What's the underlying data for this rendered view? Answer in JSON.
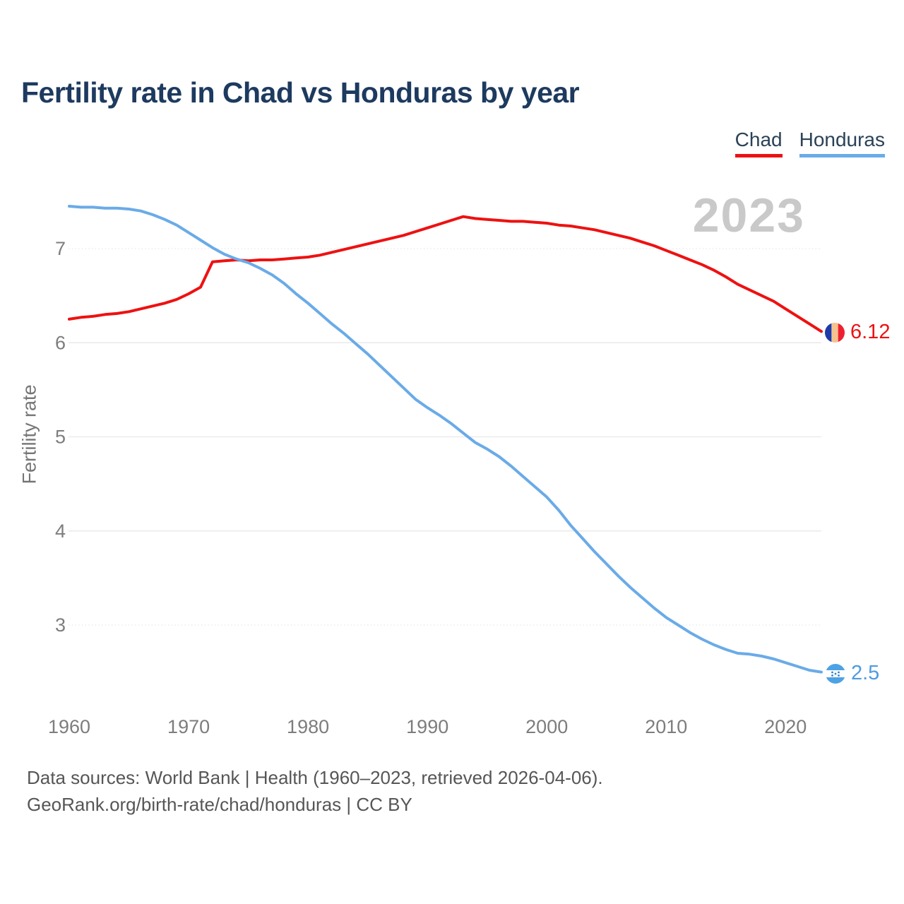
{
  "header": {
    "title": "Fertility rate in Chad vs Honduras by year"
  },
  "legend": [
    {
      "label": "Chad",
      "color": "#ee1111"
    },
    {
      "label": "Honduras",
      "color": "#6aabe8"
    }
  ],
  "watermark": "2023",
  "footer": {
    "line1": "Data sources: World Bank | Health (1960–2023, retrieved 2026-04-06).",
    "line2": "GeoRank.org/birth-rate/chad/honduras | CC BY"
  },
  "colors": {
    "chad_line": "#ee1111",
    "honduras_line": "#6aabe8",
    "honduras_value_text": "#4f9be0",
    "title_text": "#1d3a5f",
    "tick_text": "#7d7d7d",
    "gridline": "#e8e8e8",
    "watermark_text": "#c9c9c9"
  },
  "chart_data": {
    "type": "line",
    "title": "Fertility rate in Chad vs Honduras by year",
    "xlabel": "",
    "ylabel": "Fertility rate",
    "annotation_year": "2023",
    "legend_position": "top-right",
    "grid": true,
    "xticks": [
      1960,
      1970,
      1980,
      1990,
      2000,
      2010,
      2020
    ],
    "yticks": [
      3,
      4,
      5,
      6,
      7
    ],
    "ylim": [
      2.2,
      7.7
    ],
    "xlim": [
      1960,
      2023
    ],
    "x": [
      1960,
      1961,
      1962,
      1963,
      1964,
      1965,
      1966,
      1967,
      1968,
      1969,
      1970,
      1971,
      1972,
      1973,
      1974,
      1975,
      1976,
      1977,
      1978,
      1979,
      1980,
      1981,
      1982,
      1983,
      1984,
      1985,
      1986,
      1987,
      1988,
      1989,
      1990,
      1991,
      1992,
      1993,
      1994,
      1995,
      1996,
      1997,
      1998,
      1999,
      2000,
      2001,
      2002,
      2003,
      2004,
      2005,
      2006,
      2007,
      2008,
      2009,
      2010,
      2011,
      2012,
      2013,
      2014,
      2015,
      2016,
      2017,
      2018,
      2019,
      2020,
      2021,
      2022,
      2023
    ],
    "series": [
      {
        "name": "Chad",
        "color": "#ee1111",
        "end_label": "6.12",
        "final_value": 6.12,
        "values": [
          6.25,
          6.27,
          6.28,
          6.3,
          6.31,
          6.33,
          6.36,
          6.39,
          6.42,
          6.46,
          6.52,
          6.59,
          6.86,
          6.87,
          6.88,
          6.87,
          6.88,
          6.88,
          6.89,
          6.9,
          6.91,
          6.93,
          6.96,
          6.99,
          7.02,
          7.05,
          7.08,
          7.11,
          7.14,
          7.18,
          7.22,
          7.26,
          7.3,
          7.34,
          7.32,
          7.31,
          7.3,
          7.29,
          7.29,
          7.28,
          7.27,
          7.25,
          7.24,
          7.22,
          7.2,
          7.17,
          7.14,
          7.11,
          7.07,
          7.03,
          6.98,
          6.93,
          6.88,
          6.83,
          6.77,
          6.7,
          6.62,
          6.56,
          6.5,
          6.44,
          6.36,
          6.28,
          6.2,
          6.12
        ]
      },
      {
        "name": "Honduras",
        "color": "#6aabe8",
        "end_label": "2.5",
        "final_value": 2.5,
        "values": [
          7.45,
          7.44,
          7.44,
          7.43,
          7.43,
          7.42,
          7.4,
          7.36,
          7.31,
          7.25,
          7.17,
          7.09,
          7.01,
          6.94,
          6.89,
          6.85,
          6.79,
          6.72,
          6.63,
          6.52,
          6.42,
          6.31,
          6.2,
          6.1,
          5.99,
          5.88,
          5.76,
          5.64,
          5.52,
          5.4,
          5.31,
          5.23,
          5.14,
          5.04,
          4.94,
          4.87,
          4.79,
          4.69,
          4.58,
          4.47,
          4.36,
          4.22,
          4.06,
          3.92,
          3.78,
          3.65,
          3.52,
          3.4,
          3.29,
          3.18,
          3.08,
          3.0,
          2.92,
          2.85,
          2.79,
          2.74,
          2.7,
          2.69,
          2.67,
          2.64,
          2.6,
          2.56,
          2.52,
          2.5
        ]
      }
    ]
  }
}
